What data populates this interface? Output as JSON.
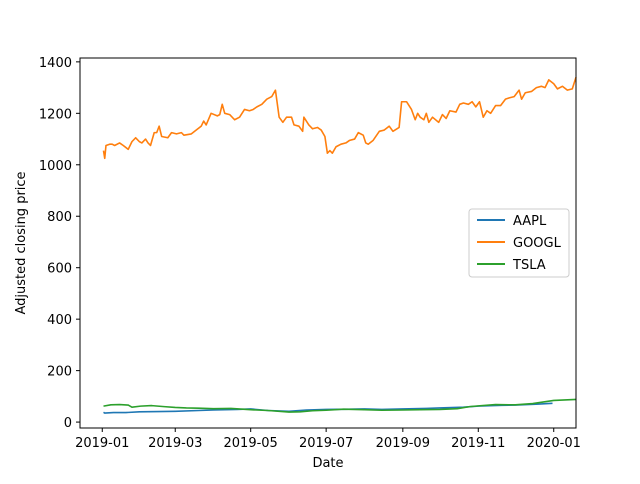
{
  "chart_data": {
    "type": "line",
    "xlabel": "Date",
    "ylabel": "Adjusted closing price",
    "xlim": [
      "2018-12-14",
      "2020-01-19"
    ],
    "ylim": [
      -23,
      1415
    ],
    "x_ticks": [
      "2019-01-01",
      "2019-03-01",
      "2019-05-01",
      "2019-07-01",
      "2019-09-01",
      "2019-11-01",
      "2020-01-01"
    ],
    "x_tick_labels": [
      "2019-01",
      "2019-03",
      "2019-05",
      "2019-07",
      "2019-09",
      "2019-11",
      "2020-01"
    ],
    "y_ticks": [
      0,
      200,
      400,
      600,
      800,
      1000,
      1200,
      1400
    ],
    "y_tick_labels": [
      "0",
      "200",
      "400",
      "600",
      "800",
      "1000",
      "1200",
      "1400"
    ],
    "grid": false,
    "legend_placement": "center-right",
    "series": [
      {
        "name": "AAPL",
        "color": "#1f77b4",
        "points": [
          [
            "2019-01-02",
            38
          ],
          [
            "2019-01-03",
            35
          ],
          [
            "2019-01-10",
            37
          ],
          [
            "2019-01-20",
            37
          ],
          [
            "2019-01-31",
            40
          ],
          [
            "2019-02-15",
            41
          ],
          [
            "2019-03-01",
            42
          ],
          [
            "2019-03-20",
            45
          ],
          [
            "2019-04-01",
            47
          ],
          [
            "2019-04-20",
            49
          ],
          [
            "2019-05-01",
            51
          ],
          [
            "2019-05-15",
            45
          ],
          [
            "2019-06-01",
            42
          ],
          [
            "2019-06-15",
            47
          ],
          [
            "2019-07-01",
            49
          ],
          [
            "2019-07-20",
            50
          ],
          [
            "2019-08-01",
            51
          ],
          [
            "2019-08-15",
            49
          ],
          [
            "2019-09-01",
            51
          ],
          [
            "2019-09-20",
            53
          ],
          [
            "2019-10-01",
            55
          ],
          [
            "2019-10-20",
            58
          ],
          [
            "2019-11-01",
            62
          ],
          [
            "2019-11-20",
            65
          ],
          [
            "2019-12-01",
            66
          ],
          [
            "2019-12-20",
            70
          ],
          [
            "2019-12-31",
            73
          ]
        ]
      },
      {
        "name": "GOOGL",
        "color": "#ff7f0e",
        "points": [
          [
            "2019-01-02",
            1055
          ],
          [
            "2019-01-03",
            1025
          ],
          [
            "2019-01-04",
            1075
          ],
          [
            "2019-01-07",
            1080
          ],
          [
            "2019-01-09",
            1080
          ],
          [
            "2019-01-11",
            1075
          ],
          [
            "2019-01-15",
            1085
          ],
          [
            "2019-01-18",
            1075
          ],
          [
            "2019-01-22",
            1060
          ],
          [
            "2019-01-25",
            1090
          ],
          [
            "2019-01-28",
            1105
          ],
          [
            "2019-01-31",
            1090
          ],
          [
            "2019-02-02",
            1085
          ],
          [
            "2019-02-05",
            1100
          ],
          [
            "2019-02-07",
            1085
          ],
          [
            "2019-02-09",
            1075
          ],
          [
            "2019-02-12",
            1125
          ],
          [
            "2019-02-14",
            1125
          ],
          [
            "2019-02-16",
            1150
          ],
          [
            "2019-02-18",
            1110
          ],
          [
            "2019-02-23",
            1105
          ],
          [
            "2019-02-26",
            1125
          ],
          [
            "2019-03-02",
            1120
          ],
          [
            "2019-03-06",
            1125
          ],
          [
            "2019-03-08",
            1115
          ],
          [
            "2019-03-14",
            1120
          ],
          [
            "2019-03-18",
            1135
          ],
          [
            "2019-03-22",
            1150
          ],
          [
            "2019-03-24",
            1170
          ],
          [
            "2019-03-26",
            1155
          ],
          [
            "2019-03-30",
            1200
          ],
          [
            "2019-04-04",
            1190
          ],
          [
            "2019-04-06",
            1195
          ],
          [
            "2019-04-08",
            1235
          ],
          [
            "2019-04-10",
            1200
          ],
          [
            "2019-04-14",
            1195
          ],
          [
            "2019-04-18",
            1175
          ],
          [
            "2019-04-22",
            1185
          ],
          [
            "2019-04-26",
            1215
          ],
          [
            "2019-04-30",
            1210
          ],
          [
            "2019-05-03",
            1215
          ],
          [
            "2019-05-06",
            1225
          ],
          [
            "2019-05-10",
            1235
          ],
          [
            "2019-05-14",
            1255
          ],
          [
            "2019-05-18",
            1265
          ],
          [
            "2019-05-21",
            1290
          ],
          [
            "2019-05-24",
            1185
          ],
          [
            "2019-05-27",
            1165
          ],
          [
            "2019-05-30",
            1185
          ],
          [
            "2019-06-03",
            1185
          ],
          [
            "2019-06-05",
            1155
          ],
          [
            "2019-06-09",
            1150
          ],
          [
            "2019-06-12",
            1130
          ],
          [
            "2019-06-13",
            1185
          ],
          [
            "2019-06-17",
            1155
          ],
          [
            "2019-06-20",
            1140
          ],
          [
            "2019-06-24",
            1145
          ],
          [
            "2019-06-27",
            1135
          ],
          [
            "2019-06-30",
            1110
          ],
          [
            "2019-07-02",
            1045
          ],
          [
            "2019-07-04",
            1055
          ],
          [
            "2019-07-06",
            1045
          ],
          [
            "2019-07-09",
            1070
          ],
          [
            "2019-07-13",
            1080
          ],
          [
            "2019-07-17",
            1085
          ],
          [
            "2019-07-20",
            1095
          ],
          [
            "2019-07-24",
            1100
          ],
          [
            "2019-07-27",
            1125
          ],
          [
            "2019-07-31",
            1115
          ],
          [
            "2019-08-02",
            1085
          ],
          [
            "2019-08-04",
            1080
          ],
          [
            "2019-08-08",
            1095
          ],
          [
            "2019-08-13",
            1130
          ],
          [
            "2019-08-17",
            1135
          ],
          [
            "2019-08-21",
            1150
          ],
          [
            "2019-08-24",
            1130
          ],
          [
            "2019-08-29",
            1145
          ],
          [
            "2019-08-31",
            1245
          ],
          [
            "2019-09-04",
            1245
          ],
          [
            "2019-09-08",
            1215
          ],
          [
            "2019-09-11",
            1175
          ],
          [
            "2019-09-13",
            1200
          ],
          [
            "2019-09-15",
            1185
          ],
          [
            "2019-09-18",
            1175
          ],
          [
            "2019-09-20",
            1200
          ],
          [
            "2019-09-22",
            1165
          ],
          [
            "2019-09-25",
            1185
          ],
          [
            "2019-09-30",
            1165
          ],
          [
            "2019-10-03",
            1195
          ],
          [
            "2019-10-06",
            1180
          ],
          [
            "2019-10-09",
            1210
          ],
          [
            "2019-10-14",
            1205
          ],
          [
            "2019-10-17",
            1235
          ],
          [
            "2019-10-20",
            1240
          ],
          [
            "2019-10-24",
            1235
          ],
          [
            "2019-10-27",
            1245
          ],
          [
            "2019-10-30",
            1225
          ],
          [
            "2019-11-02",
            1245
          ],
          [
            "2019-11-05",
            1185
          ],
          [
            "2019-11-08",
            1210
          ],
          [
            "2019-11-11",
            1200
          ],
          [
            "2019-11-15",
            1230
          ],
          [
            "2019-11-19",
            1230
          ],
          [
            "2019-11-23",
            1255
          ],
          [
            "2019-11-26",
            1260
          ],
          [
            "2019-11-30",
            1265
          ],
          [
            "2019-12-04",
            1290
          ],
          [
            "2019-12-06",
            1255
          ],
          [
            "2019-12-09",
            1280
          ],
          [
            "2019-12-14",
            1285
          ],
          [
            "2019-12-18",
            1300
          ],
          [
            "2019-12-22",
            1305
          ],
          [
            "2019-12-25",
            1300
          ],
          [
            "2019-12-28",
            1330
          ],
          [
            "2020-01-01",
            1315
          ],
          [
            "2020-01-04",
            1295
          ],
          [
            "2020-01-08",
            1305
          ],
          [
            "2020-01-12",
            1290
          ],
          [
            "2020-01-16",
            1295
          ],
          [
            "2020-01-19",
            1340
          ]
        ]
      },
      {
        "name": "TSLA",
        "color": "#2ca02c",
        "points": [
          [
            "2019-01-02",
            62
          ],
          [
            "2019-01-08",
            67
          ],
          [
            "2019-01-15",
            68
          ],
          [
            "2019-01-22",
            66
          ],
          [
            "2019-01-25",
            58
          ],
          [
            "2019-02-01",
            62
          ],
          [
            "2019-02-10",
            64
          ],
          [
            "2019-02-20",
            60
          ],
          [
            "2019-03-01",
            57
          ],
          [
            "2019-03-10",
            55
          ],
          [
            "2019-03-20",
            54
          ],
          [
            "2019-04-01",
            52
          ],
          [
            "2019-04-15",
            53
          ],
          [
            "2019-05-01",
            48
          ],
          [
            "2019-05-15",
            45
          ],
          [
            "2019-06-01",
            39
          ],
          [
            "2019-06-10",
            40
          ],
          [
            "2019-06-20",
            44
          ],
          [
            "2019-07-01",
            46
          ],
          [
            "2019-07-15",
            50
          ],
          [
            "2019-08-01",
            48
          ],
          [
            "2019-08-15",
            46
          ],
          [
            "2019-09-01",
            47
          ],
          [
            "2019-09-15",
            48
          ],
          [
            "2019-10-01",
            49
          ],
          [
            "2019-10-15",
            52
          ],
          [
            "2019-10-25",
            60
          ],
          [
            "2019-11-01",
            63
          ],
          [
            "2019-11-15",
            68
          ],
          [
            "2019-12-01",
            67
          ],
          [
            "2019-12-15",
            72
          ],
          [
            "2020-01-01",
            84
          ],
          [
            "2020-01-10",
            86
          ],
          [
            "2020-01-19",
            88
          ]
        ]
      }
    ]
  }
}
